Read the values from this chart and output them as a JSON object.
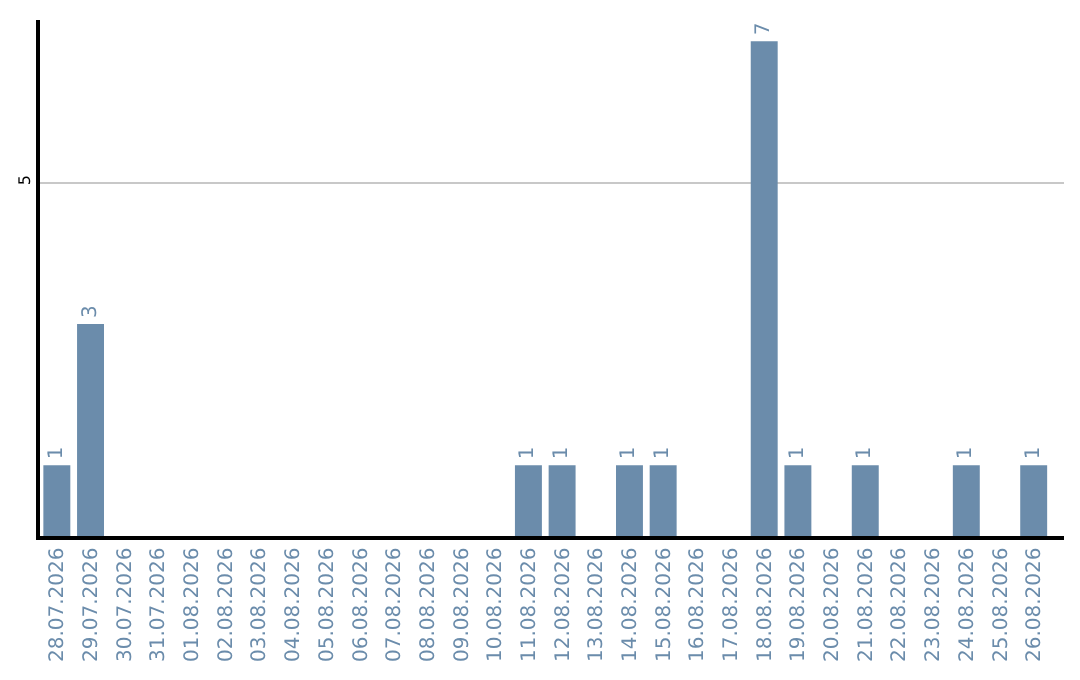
{
  "chart_data": {
    "type": "bar",
    "categories": [
      "28.07.2026",
      "29.07.2026",
      "30.07.2026",
      "31.07.2026",
      "01.08.2026",
      "02.08.2026",
      "03.08.2026",
      "04.08.2026",
      "05.08.2026",
      "06.08.2026",
      "07.08.2026",
      "08.08.2026",
      "09.08.2026",
      "10.08.2026",
      "11.08.2026",
      "12.08.2026",
      "13.08.2026",
      "14.08.2026",
      "15.08.2026",
      "16.08.2026",
      "17.08.2026",
      "18.08.2026",
      "19.08.2026",
      "20.08.2026",
      "21.08.2026",
      "22.08.2026",
      "23.08.2026",
      "24.08.2026",
      "25.08.2026",
      "26.08.2026"
    ],
    "values": [
      1,
      3,
      0,
      0,
      0,
      0,
      0,
      0,
      0,
      0,
      0,
      0,
      0,
      0,
      1,
      1,
      0,
      1,
      1,
      0,
      0,
      7,
      1,
      0,
      1,
      0,
      0,
      1,
      0,
      1
    ],
    "value_labels": [
      "1",
      "3",
      null,
      null,
      null,
      null,
      null,
      null,
      null,
      null,
      null,
      null,
      null,
      null,
      "1",
      "1",
      null,
      "1",
      "1",
      null,
      null,
      "7",
      "1",
      null,
      "1",
      null,
      null,
      "1",
      null,
      "1"
    ],
    "color": "#6b8cab",
    "ylim": [
      0,
      7.3
    ],
    "yticks": [
      5
    ],
    "grid": "y",
    "legend": false
  }
}
